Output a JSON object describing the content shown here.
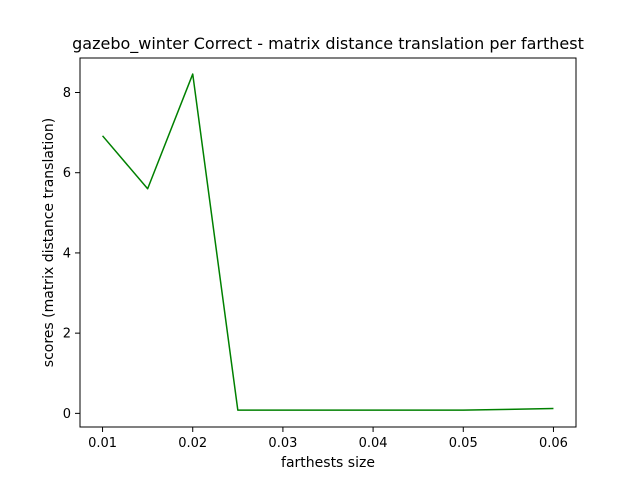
{
  "chart_data": {
    "type": "line",
    "title": "gazebo_winter Correct - matrix distance translation per farthest",
    "xlabel": "farthests size",
    "ylabel": "scores (matrix distance translation)",
    "xlim": [
      0.0075,
      0.0625
    ],
    "ylim": [
      -0.34,
      8.86
    ],
    "xticks": [
      0.01,
      0.02,
      0.03,
      0.04,
      0.05,
      0.06
    ],
    "xtick_labels": [
      "0.01",
      "0.02",
      "0.03",
      "0.04",
      "0.05",
      "0.06"
    ],
    "yticks": [
      0,
      2,
      4,
      6,
      8
    ],
    "ytick_labels": [
      "0",
      "2",
      "4",
      "6",
      "8"
    ],
    "grid": false,
    "series": [
      {
        "color": "#008000",
        "x": [
          0.01,
          0.015,
          0.02,
          0.025,
          0.03,
          0.035,
          0.04,
          0.045,
          0.05,
          0.055,
          0.06
        ],
        "y": [
          6.92,
          5.6,
          8.46,
          0.08,
          0.08,
          0.08,
          0.08,
          0.08,
          0.08,
          0.1,
          0.12
        ]
      }
    ]
  }
}
